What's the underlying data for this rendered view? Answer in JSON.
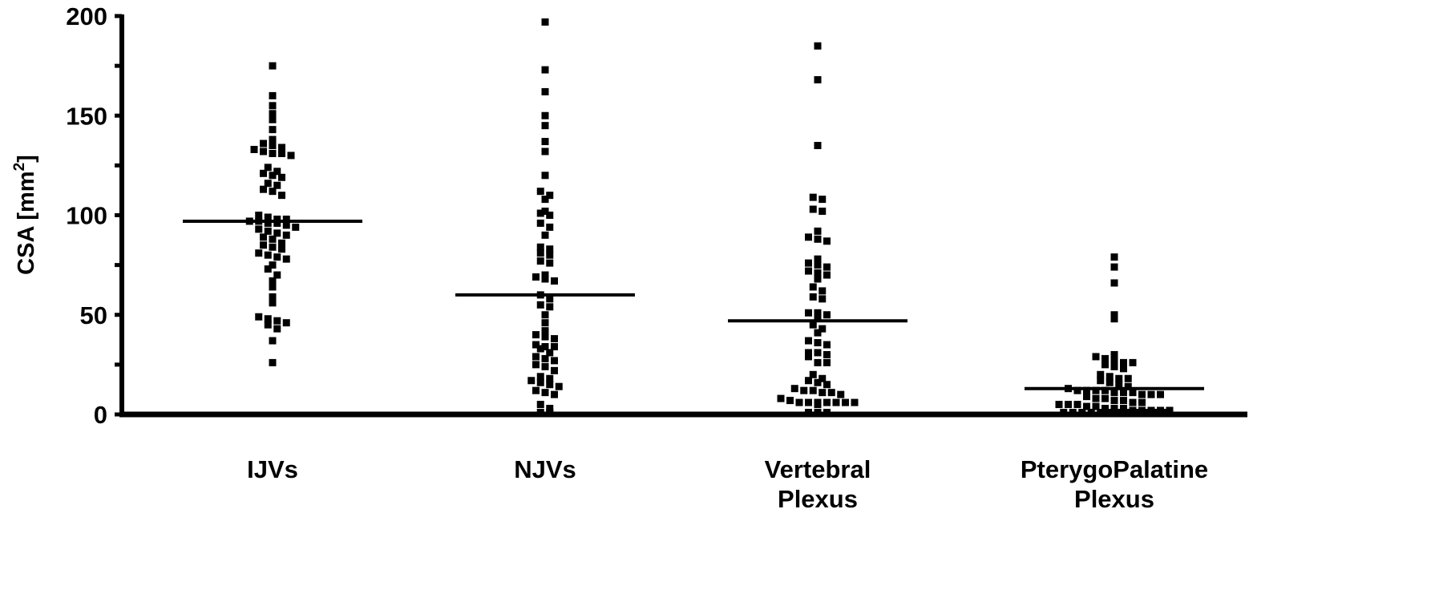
{
  "chart_data": {
    "type": "scatter",
    "ylabel": "CSA [mm",
    "ylabel_superscript": "2",
    "ylabel_suffix": "]",
    "ylim": [
      0,
      200
    ],
    "yticks": [
      0,
      50,
      100,
      150,
      200
    ],
    "grid": false,
    "categories": [
      {
        "lines": [
          "IJVs"
        ]
      },
      {
        "lines": [
          "NJVs"
        ]
      },
      {
        "lines": [
          "Vertebral",
          "Plexus"
        ]
      },
      {
        "lines": [
          "PterygoPalatine",
          "Plexus"
        ]
      }
    ],
    "series": [
      {
        "mean": 97,
        "values": [
          175,
          160,
          155,
          151,
          148,
          143,
          138,
          136,
          135,
          134,
          133,
          132,
          131,
          131,
          130,
          124,
          122,
          121,
          120,
          119,
          116,
          115,
          113,
          112,
          110,
          100,
          99,
          98,
          98,
          97,
          97,
          96,
          96,
          95,
          94,
          93,
          92,
          91,
          90,
          89,
          88,
          86,
          85,
          84,
          83,
          81,
          80,
          79,
          78,
          75,
          73,
          70,
          67,
          64,
          59,
          56,
          49,
          48,
          47,
          46,
          45,
          43,
          37,
          26
        ]
      },
      {
        "mean": 60,
        "values": [
          197,
          173,
          162,
          150,
          145,
          137,
          132,
          120,
          112,
          110,
          108,
          102,
          101,
          100,
          96,
          94,
          90,
          84,
          83,
          81,
          80,
          77,
          76,
          70,
          69,
          68,
          67,
          60,
          58,
          55,
          54,
          50,
          46,
          42,
          40,
          39,
          38,
          35,
          34,
          34,
          33,
          31,
          29,
          28,
          27,
          25,
          24,
          22,
          19,
          18,
          17,
          16,
          15,
          14,
          12,
          11,
          10,
          5,
          3,
          1,
          1
        ]
      },
      {
        "mean": 47,
        "values": [
          185,
          168,
          135,
          109,
          108,
          103,
          102,
          92,
          89,
          88,
          87,
          78,
          76,
          75,
          74,
          72,
          71,
          70,
          68,
          64,
          62,
          59,
          58,
          51,
          51,
          50,
          49,
          45,
          43,
          41,
          37,
          36,
          35,
          31,
          31,
          30,
          29,
          26,
          26,
          20,
          18,
          17,
          16,
          15,
          13,
          12,
          12,
          11,
          11,
          10,
          8,
          7,
          6,
          6,
          6,
          6,
          6,
          6,
          6,
          5,
          1,
          1,
          1
        ]
      },
      {
        "mean": 13,
        "values": [
          79,
          74,
          66,
          50,
          48,
          30,
          29,
          28,
          27,
          26,
          26,
          25,
          24,
          23,
          20,
          19,
          18,
          18,
          17,
          16,
          15,
          14,
          13,
          12,
          12,
          12,
          12,
          11,
          11,
          11,
          10,
          10,
          10,
          9,
          8,
          8,
          7,
          7,
          6,
          6,
          5,
          5,
          5,
          4,
          4,
          3,
          3,
          3,
          2,
          2,
          2,
          2,
          2,
          1,
          1,
          1,
          1,
          1,
          1,
          1,
          1,
          1,
          1,
          1,
          1
        ]
      }
    ]
  }
}
